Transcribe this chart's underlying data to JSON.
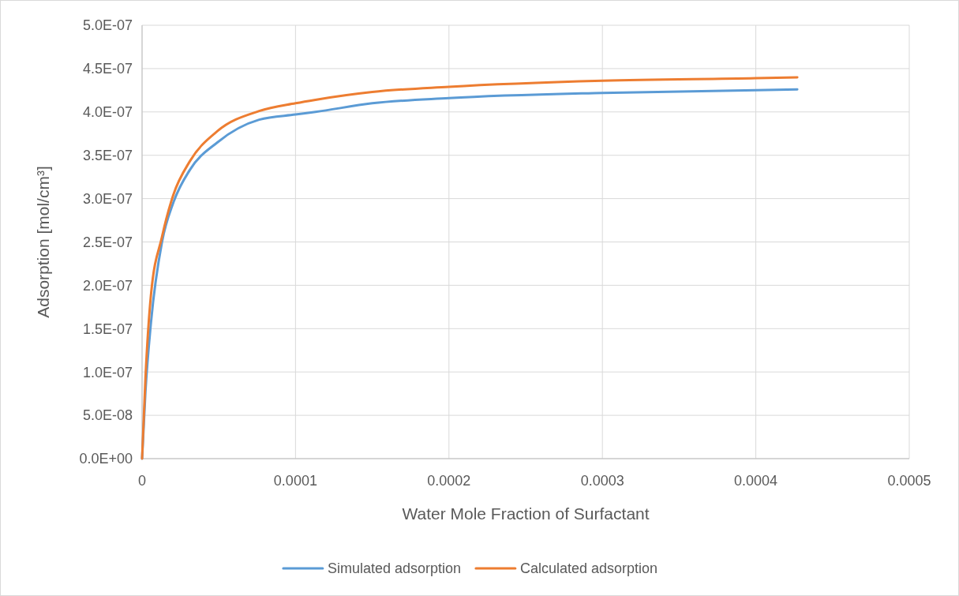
{
  "chart_data": {
    "type": "line",
    "xlabel": "Water Mole Fraction of Surfactant",
    "ylabel": "Adsorption [mol/cm³]",
    "xlim": [
      0,
      0.0005
    ],
    "xticks": [
      0,
      0.0001,
      0.0002,
      0.0003,
      0.0004,
      0.0005
    ],
    "ylim": [
      0,
      5e-07
    ],
    "yticks": [
      {
        "value": 0,
        "label": "0.0E+00"
      },
      {
        "value": 5e-08,
        "label": "5.0E-08"
      },
      {
        "value": 1e-07,
        "label": "1.0E-07"
      },
      {
        "value": 1.5e-07,
        "label": "1.5E-07"
      },
      {
        "value": 2e-07,
        "label": "2.0E-07"
      },
      {
        "value": 2.5e-07,
        "label": "2.5E-07"
      },
      {
        "value": 3e-07,
        "label": "3.0E-07"
      },
      {
        "value": 3.5e-07,
        "label": "3.5E-07"
      },
      {
        "value": 4e-07,
        "label": "4.0E-07"
      },
      {
        "value": 4.5e-07,
        "label": "4.5E-07"
      },
      {
        "value": 5e-07,
        "label": "5.0E-07"
      }
    ],
    "grid": true,
    "legend": "bottom",
    "marker": "none",
    "line_style": "solid",
    "series": [
      {
        "name": "Simulated adsorption",
        "color": "#5b9bd5",
        "x": [
          0,
          2.2e-06,
          5.8e-06,
          1.3e-05,
          2.03e-05,
          3.11e-05,
          4.92e-05,
          7.63e-05,
          0.0001,
          0.000113,
          0.00015,
          0.0002,
          0.0003,
          0.0004,
          0.000427
        ],
        "values": [
          0,
          7.7e-08,
          1.57e-07,
          2.5e-07,
          2.95e-07,
          3.33e-07,
          3.65e-07,
          3.91e-07,
          3.97e-07,
          4e-07,
          4.1e-07,
          4.16e-07,
          4.22e-07,
          4.25e-07,
          4.26e-07
        ]
      },
      {
        "name": "Calculated adsorption",
        "color": "#ed7d31",
        "x": [
          0,
          2.2e-06,
          5.8e-06,
          1.3e-05,
          2.03e-05,
          3.11e-05,
          4.92e-05,
          7.63e-05,
          0.0001,
          0.000113,
          0.00015,
          0.0002,
          0.0003,
          0.0004,
          0.000427
        ],
        "values": [
          0,
          9.3e-08,
          1.89e-07,
          2.56e-07,
          3.04e-07,
          3.43e-07,
          3.78e-07,
          4.01e-07,
          4.1e-07,
          4.14e-07,
          4.23e-07,
          4.29e-07,
          4.36e-07,
          4.39e-07,
          4.4e-07
        ]
      }
    ]
  }
}
